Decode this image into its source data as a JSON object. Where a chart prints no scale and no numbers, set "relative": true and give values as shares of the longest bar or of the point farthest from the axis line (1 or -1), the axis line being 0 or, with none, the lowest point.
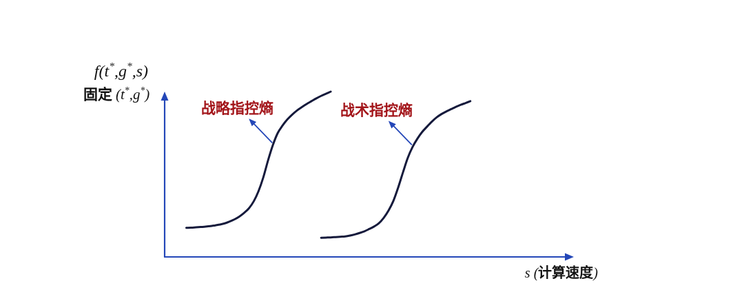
{
  "chart_data": {
    "type": "line",
    "relative": true,
    "ylabel": "f(t$^{*}$,g$^{*}$,s)",
    "xlabel": "s (计算速度)",
    "annotations": [
      "固定 (t$^{*}$,g$^{*}$)"
    ],
    "categories": [
      null,
      null,
      null,
      null,
      null,
      null,
      null,
      null,
      null,
      null,
      null,
      null,
      null,
      null,
      null,
      null,
      null,
      null,
      null,
      null,
      null,
      null,
      null,
      null,
      null,
      null,
      null,
      null,
      null,
      null,
      null,
      null,
      null,
      null,
      null,
      null,
      null,
      null,
      null,
      null,
      null,
      null,
      null,
      null,
      null,
      null,
      null,
      null,
      null,
      null,
      null,
      null,
      null,
      null,
      null,
      null,
      null,
      null,
      null,
      null,
      null,
      null,
      null,
      null,
      null,
      null,
      null,
      null,
      null,
      null,
      null,
      null,
      null,
      null,
      null,
      null,
      null,
      null,
      null,
      null,
      null,
      null,
      null,
      null,
      null
    ],
    "series": [
      {
        "name": "战略指控熵",
        "color": "#151a3c",
        "values": [
          null,
          null,
          null,
          null,
          0.176,
          0.177,
          0.179,
          0.181,
          0.183,
          0.186,
          0.191,
          0.196,
          0.203,
          0.214,
          0.227,
          0.244,
          0.266,
          0.294,
          0.336,
          0.398,
          0.482,
          0.586,
          0.678,
          0.75,
          0.795,
          0.832,
          0.861,
          0.886,
          0.906,
          0.925,
          0.942,
          0.959,
          0.974,
          0.987,
          1.0,
          null,
          null,
          null,
          null,
          null,
          null,
          null,
          null,
          null,
          null,
          null,
          null,
          null,
          null,
          null,
          null,
          null,
          null,
          null,
          null,
          null,
          null,
          null,
          null,
          null,
          null,
          null,
          null,
          null,
          null,
          null,
          null,
          null,
          null,
          null,
          null,
          null,
          null,
          null,
          null,
          null,
          null,
          null,
          null,
          null,
          null,
          null,
          null,
          null,
          null
        ]
      },
      {
        "name": "战术指控熵",
        "color": "#151a3c",
        "values": [
          null,
          null,
          null,
          null,
          null,
          null,
          null,
          null,
          null,
          null,
          null,
          null,
          null,
          null,
          null,
          null,
          null,
          null,
          null,
          null,
          null,
          null,
          null,
          null,
          null,
          null,
          null,
          null,
          null,
          null,
          null,
          null,
          0.116,
          0.117,
          0.118,
          0.12,
          0.122,
          0.124,
          0.129,
          0.136,
          0.145,
          0.155,
          0.169,
          0.184,
          0.204,
          0.236,
          0.28,
          0.338,
          0.419,
          0.511,
          0.599,
          0.665,
          0.715,
          0.756,
          0.788,
          0.818,
          0.844,
          0.864,
          0.88,
          0.894,
          0.908,
          0.92,
          0.931,
          0.942,
          null,
          null,
          null,
          null,
          null,
          null,
          null,
          null,
          null,
          null,
          null,
          null,
          null,
          null,
          null,
          null,
          null,
          null,
          null,
          null,
          null
        ]
      }
    ]
  }
}
